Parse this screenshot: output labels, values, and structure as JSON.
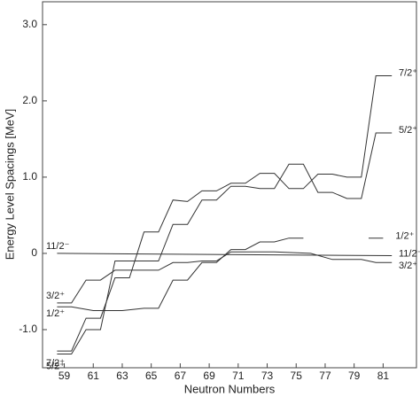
{
  "chart_data": {
    "type": "line",
    "x_label": "Neutron Numbers",
    "y_label": "Energy Level Spacings [MeV]",
    "xlim": [
      57.5,
      83.3
    ],
    "ylim": [
      -1.5,
      3.3
    ],
    "xticks": [
      59,
      61,
      63,
      65,
      67,
      69,
      71,
      73,
      75,
      77,
      79,
      81
    ],
    "yticks": [
      {
        "value": -1,
        "label": "-1.0"
      },
      0,
      {
        "value": 1,
        "label": "1.0"
      },
      {
        "value": 2,
        "label": "2.0"
      },
      {
        "value": 3,
        "label": "3.0"
      }
    ],
    "series": [
      {
        "name": "7/2⁺",
        "color": "#333333",
        "x": [
          58.5,
          59.5,
          60.5,
          61.5,
          62.5,
          63.5,
          64.5,
          65.5,
          66.5,
          67.5,
          68.5,
          69.5,
          70.5,
          71.5,
          72.5,
          73.5,
          74.5,
          75.5,
          76.5,
          77.5,
          78.5,
          79.5,
          80.5,
          81.6
        ],
        "values": [
          -1.28,
          -1.28,
          -0.85,
          -0.85,
          -0.32,
          -0.32,
          0.28,
          0.28,
          0.7,
          0.68,
          0.82,
          0.82,
          0.92,
          0.92,
          1.05,
          1.05,
          0.85,
          0.85,
          1.04,
          1.04,
          1.0,
          1.0,
          2.33,
          2.33
        ]
      },
      {
        "name": "5/2⁺",
        "color": "#333333",
        "x": [
          58.5,
          59.5,
          60.5,
          61.5,
          62.5,
          63.5,
          64.5,
          65.5,
          66.5,
          67.5,
          68.5,
          69.5,
          70.5,
          71.5,
          72.5,
          73.5,
          74.5,
          75.5,
          76.5,
          77.5,
          78.5,
          79.5,
          80.5,
          81.6
        ],
        "values": [
          -1.32,
          -1.32,
          -1.0,
          -1.0,
          -0.1,
          -0.1,
          -0.1,
          -0.1,
          0.38,
          0.38,
          0.7,
          0.7,
          0.88,
          0.88,
          0.85,
          0.85,
          1.17,
          1.17,
          0.8,
          0.8,
          0.72,
          0.72,
          1.58,
          1.58
        ]
      },
      {
        "name": "1/2⁺",
        "color": "#333333",
        "x": [
          58.5,
          59.5,
          61,
          63,
          64.5,
          65.5,
          66.5,
          67.5,
          68.5,
          69.5,
          70.5,
          71.5,
          72.5,
          73.5,
          74.5,
          75.5,
          78,
          80,
          81
        ],
        "values": [
          -0.7,
          -0.7,
          -0.75,
          -0.75,
          -0.72,
          -0.72,
          -0.35,
          -0.35,
          -0.12,
          -0.12,
          0.05,
          0.05,
          0.15,
          0.15,
          0.2,
          0.2,
          null,
          0.2,
          0.2
        ]
      },
      {
        "name": "11/2⁻",
        "color": "#333333",
        "x": [
          58.5,
          81.6
        ],
        "values": [
          0.0,
          -0.03
        ]
      },
      {
        "name": "3/2⁺",
        "color": "#333333",
        "x": [
          58.5,
          59.5,
          60.5,
          61.5,
          62.5,
          63.5,
          64.5,
          65.5,
          66.5,
          67.5,
          68.5,
          69.5,
          70.5,
          71.5,
          72.5,
          73.5,
          76,
          77.5,
          79.5,
          80.5,
          81.6
        ],
        "values": [
          -0.65,
          -0.65,
          -0.35,
          -0.35,
          -0.22,
          -0.22,
          -0.22,
          -0.22,
          -0.12,
          -0.12,
          -0.1,
          -0.1,
          0.02,
          0.02,
          0.02,
          0.02,
          0.0,
          -0.08,
          -0.08,
          -0.12,
          -0.12
        ]
      }
    ]
  }
}
